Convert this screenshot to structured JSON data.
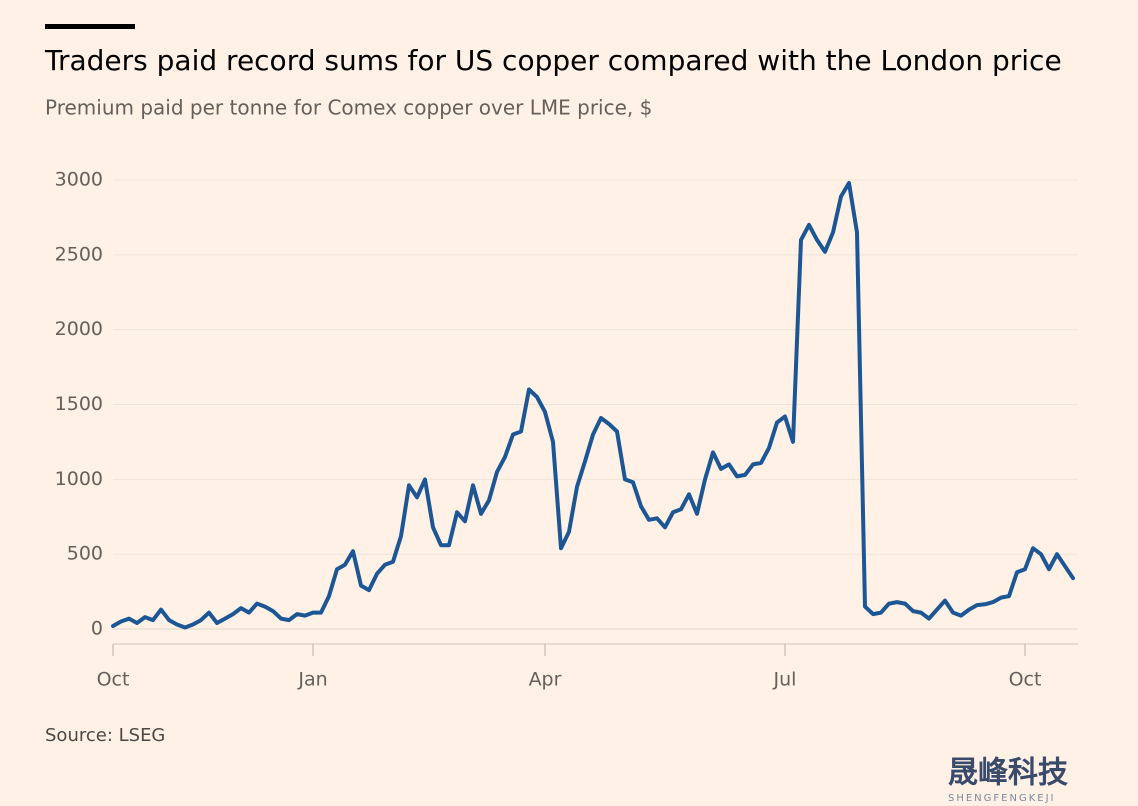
{
  "chart_data": {
    "type": "line",
    "title": "Traders paid record sums for US copper compared with the London price",
    "subtitle": "Premium paid per tonne for Comex copper over LME price, $",
    "source": "Source: LSEG",
    "categories": [
      "Oct",
      null,
      null,
      null,
      null,
      null,
      null,
      null,
      null,
      null,
      null,
      null,
      null,
      null,
      null,
      null,
      null,
      null,
      null,
      null,
      null,
      null,
      null,
      null,
      null,
      "Jan",
      null,
      null,
      null,
      null,
      null,
      null,
      null,
      null,
      null,
      null,
      null,
      null,
      null,
      null,
      null,
      null,
      null,
      null,
      null,
      null,
      null,
      null,
      null,
      null,
      null,
      null,
      null,
      null,
      "Apr",
      null,
      null,
      null,
      null,
      null,
      null,
      null,
      null,
      null,
      null,
      null,
      null,
      null,
      null,
      null,
      null,
      null,
      null,
      null,
      null,
      null,
      null,
      null,
      null,
      null,
      null,
      null,
      null,
      null,
      "Jul",
      null,
      null,
      null,
      null,
      null,
      null,
      null,
      null,
      null,
      null,
      null,
      null,
      null,
      null,
      null,
      null,
      null,
      null,
      null,
      null,
      null,
      null,
      null,
      null,
      null,
      null,
      null,
      null,
      null,
      "Oct",
      null,
      null,
      null,
      null,
      null,
      null
    ],
    "series": [
      {
        "name": "Premium",
        "color": "#1d5694",
        "values": [
          20,
          50,
          70,
          40,
          80,
          60,
          130,
          60,
          30,
          10,
          30,
          60,
          110,
          40,
          70,
          100,
          140,
          110,
          170,
          150,
          120,
          70,
          60,
          100,
          90,
          110,
          110,
          220,
          400,
          430,
          520,
          290,
          260,
          370,
          430,
          450,
          620,
          960,
          880,
          1000,
          680,
          560,
          560,
          780,
          720,
          960,
          770,
          860,
          1050,
          1150,
          1300,
          1320,
          1600,
          1550,
          1450,
          1250,
          540,
          650,
          950,
          1120,
          1300,
          1410,
          1370,
          1320,
          1000,
          980,
          820,
          730,
          740,
          680,
          780,
          800,
          900,
          770,
          1000,
          1180,
          1070,
          1100,
          1020,
          1030,
          1100,
          1110,
          1210,
          1380,
          1420,
          1250,
          2600,
          2700,
          2600,
          2520,
          2650,
          2890,
          2980,
          2650,
          150,
          100,
          110,
          170,
          180,
          170,
          120,
          110,
          70,
          130,
          190,
          110,
          90,
          130,
          160,
          165,
          180,
          210,
          220,
          380,
          400,
          540,
          500,
          400,
          500,
          420,
          340
        ]
      }
    ],
    "ylim": [
      -100,
      3000
    ],
    "yticks": [
      0,
      500,
      1000,
      1500,
      2000,
      2500,
      3000
    ],
    "grid": true
  },
  "watermark": {
    "text": "晟峰科技",
    "subtext": "SHENGFENGKEJI"
  }
}
